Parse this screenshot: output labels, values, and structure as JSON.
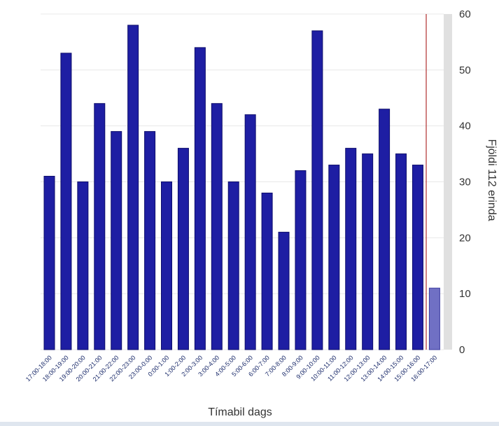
{
  "chart_data": {
    "type": "bar",
    "title": "",
    "xlabel": "Tímabil dags",
    "ylabel": "Fjöldi 112 erinda",
    "ylim": [
      0,
      60
    ],
    "yticks": [
      0,
      10,
      20,
      30,
      40,
      50,
      60
    ],
    "y_axis_position": "right",
    "grid": true,
    "legend": "none",
    "categories": [
      "17:00-18:00",
      "18:00-19:00",
      "19:00-20:00",
      "20:00-21:00",
      "21:00-22:00",
      "22:00-23:00",
      "23:00-0:00",
      "0:00-1:00",
      "1:00-2:00",
      "2:00-3:00",
      "3:00-4:00",
      "4:00-5:00",
      "5:00-6:00",
      "6:00-7:00",
      "7:00-8:00",
      "8:00-9:00",
      "9:00-10:00",
      "10:00-11:00",
      "11:00-12:00",
      "12:00-13:00",
      "13:00-14:00",
      "14:00-15:00",
      "15:00-16:00",
      "16:00-17:00"
    ],
    "values": [
      31,
      53,
      30,
      44,
      39,
      58,
      39,
      30,
      36,
      54,
      44,
      30,
      42,
      28,
      21,
      32,
      57,
      33,
      36,
      35,
      43,
      35,
      33,
      11
    ],
    "highlighted_last_bar": true,
    "colors": {
      "bar_fill": "#1e1ea3",
      "bar_stroke": "#0d0d6b",
      "highlight_fill": "#7070c4",
      "highlight_stroke": "#3a3aa0",
      "marker_line": "#b03030",
      "axis_text": "#333333",
      "category_text": "#1a2a6a",
      "gridline": "#e8e8e8",
      "side_band": "#e0e0e0"
    }
  }
}
